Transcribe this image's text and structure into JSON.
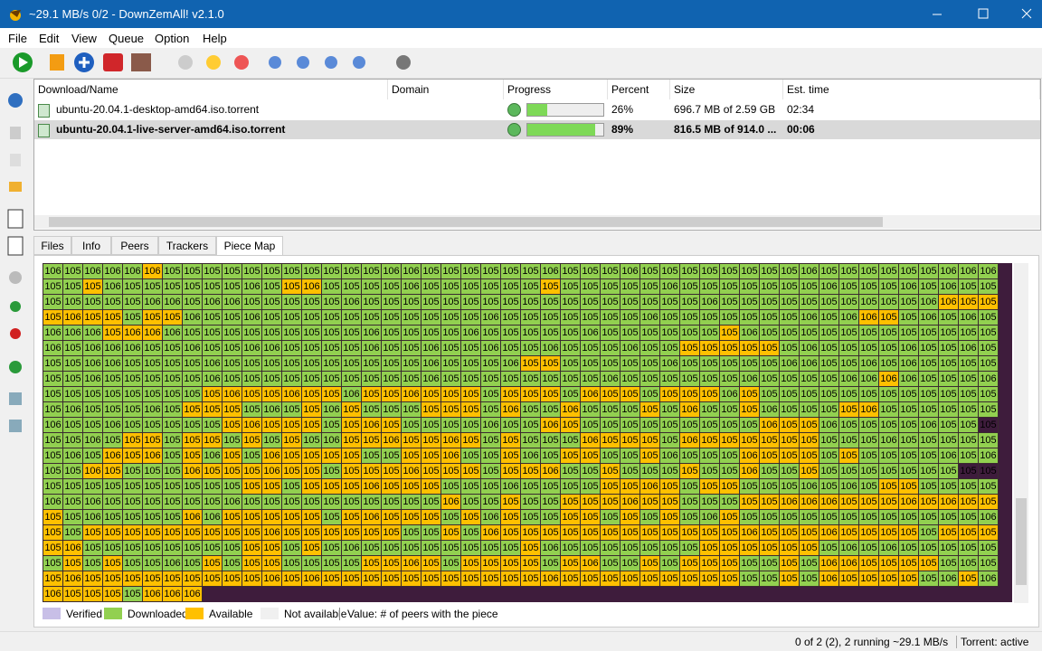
{
  "window": {
    "title": "~29.1 MB/s 0/2 - DownZemAll! v2.1.0"
  },
  "menu": [
    "File",
    "Edit",
    "View",
    "Queue",
    "Option",
    "Help"
  ],
  "table": {
    "columns": [
      "Download/Name",
      "Domain",
      "Progress",
      "Percent",
      "Size",
      "Est. time"
    ],
    "rows": [
      {
        "name": "ubuntu-20.04.1-desktop-amd64.iso.torrent",
        "progress": 26,
        "percent": "26%",
        "size": "696.7 MB of 2.59 GB",
        "time": "02:34",
        "selected": false
      },
      {
        "name": "ubuntu-20.04.1-live-server-amd64.iso.torrent",
        "progress": 89,
        "percent": "89%",
        "size": "816.5 MB of 914.0 ...",
        "time": "00:06",
        "selected": true
      }
    ]
  },
  "tabs": [
    "Files",
    "Info",
    "Peers",
    "Trackers",
    "Piece Map"
  ],
  "active_tab": 4,
  "piece_map": {
    "colors": {
      "d": "#92d050",
      "a": "#ffc000"
    },
    "states": [
      "dddddadddddddddddddddddddddddddddddddddddddddddd",
      "ddadddddddddaadddddddddddaddddddddddddddddddddddd",
      "dddddddddddddddddddddddddddddddddddddddddddddaaa",
      "aaaadaaddddddddddddddddddddddddddddddddddaaddddd",
      "dddaaaddddddddddddddddddddddddddddaddddddddddddd",
      "ddddddddddddddddddddddddddddddddaaaaaddddddddddd",
      "ddddddddddddddddddddddddaadddddddddddddddddddddd",
      "ddddddddddddddddddddddddddddddddddddddddddaddddd",
      "ddddddddaaaaaaadaaaaaadaaadaaadaaadaddddddddddddd",
      "dddddddaaadddadadddaaadaddadddadaddaddddaadddddd",
      "dddddddddaaaaadaaadddddddaadddddddddaaadddddddd",
      "ddddaadaadadaddaaaaaaadadddaaaadaaaaaaaddddddddd",
      "dddaaadadadaaaaaddaaaddaddaaddaddddaaaadaddddddda",
      "ddaadddaaaaaaadaaaaaaadaaaddadddaddaddaddddddd",
      "ddddddddddaadaaaaaaaddddddddaaaadaadddddddaadddd",
      "ddddddddddddddddddddaddaddaaaaaadddaaaaaaaaaaaaa",
      "addddddadaaaaadaaaaadadaddaadadaddaddddddddddddd",
      "adaaaaaaaaaaaaaaaaddadaaaaaaaaaaaaaaaaaaaaaadaaa",
      "aaddddddddaadaddddddddddaddddddddaaaaaaddddddddddd",
      "dadaddddadaaddddaaaadaaaadaaddadaaaddadaaaaaaddd",
      "aaaaaaaaaaaaaaaaaaaaaaaaaaaaaaaaaaaddadaaaaaddad",
      "aaaadaaa"
    ],
    "rows": [
      [
        106,
        105,
        106,
        106,
        106,
        106,
        105,
        105,
        105,
        105,
        105,
        105,
        105,
        105,
        105,
        105,
        105,
        106,
        106,
        105,
        105,
        105,
        105,
        105,
        105,
        106,
        105,
        105,
        105,
        106,
        105,
        105,
        105,
        105,
        105,
        105,
        105,
        105,
        106,
        105,
        105,
        105,
        105,
        105,
        105,
        106,
        106,
        106
      ],
      [
        105,
        105,
        105,
        106,
        105,
        105,
        105,
        105,
        105,
        105,
        106,
        105,
        105,
        106,
        105,
        105,
        105,
        105,
        106,
        105,
        105,
        105,
        105,
        105,
        105,
        105,
        105,
        105,
        105,
        105,
        105,
        106,
        105,
        105,
        105,
        105,
        105,
        105,
        105,
        106,
        105,
        105,
        105,
        106,
        105,
        106,
        105,
        105
      ],
      [
        105,
        105,
        105,
        105,
        105,
        106,
        106,
        105,
        106,
        106,
        105,
        105,
        105,
        105,
        105,
        106,
        105,
        105,
        105,
        105,
        105,
        105,
        105,
        105,
        105,
        105,
        105,
        105,
        105,
        105,
        105,
        105,
        105,
        106,
        105,
        105,
        105,
        105,
        105,
        105,
        105,
        105,
        105,
        105,
        106,
        106,
        105,
        105
      ],
      [
        105,
        106,
        105,
        105,
        105,
        105,
        105,
        106,
        105,
        105,
        106,
        105,
        105,
        105,
        105,
        105,
        105,
        105,
        105,
        105,
        105,
        105,
        106,
        105,
        105,
        105,
        105,
        105,
        105,
        105,
        106,
        105,
        105,
        105,
        105,
        105,
        105,
        105,
        106,
        105,
        106,
        106,
        105,
        105,
        106,
        105,
        106,
        105
      ],
      [
        106,
        106,
        106,
        105,
        106,
        106,
        106,
        105,
        105,
        105,
        105,
        105,
        105,
        105,
        105,
        105,
        106,
        105,
        105,
        105,
        105,
        106,
        105,
        105,
        105,
        105,
        105,
        106,
        105,
        105,
        105,
        105,
        105,
        105,
        105,
        106,
        105,
        105,
        105,
        105,
        105,
        105,
        105,
        105,
        105,
        105,
        105,
        105
      ],
      [
        106,
        105,
        106,
        106,
        106,
        105,
        105,
        106,
        105,
        105,
        106,
        106,
        105,
        105,
        105,
        105,
        106,
        105,
        105,
        106,
        105,
        105,
        106,
        105,
        105,
        106,
        105,
        105,
        105,
        106,
        105,
        105,
        105,
        105,
        105,
        105,
        105,
        105,
        106,
        105,
        105,
        105,
        105,
        106,
        105,
        105,
        106,
        105
      ],
      [
        105,
        105,
        106,
        106,
        105,
        105,
        105,
        105,
        106,
        105,
        105,
        105,
        105,
        105,
        105,
        105,
        105,
        105,
        105,
        106,
        105,
        105,
        105,
        106,
        105,
        105,
        105,
        105,
        105,
        105,
        105,
        106,
        105,
        105,
        105,
        105,
        105,
        106,
        106,
        105,
        105,
        106,
        105,
        106,
        105,
        105,
        105,
        105
      ],
      [
        105,
        105,
        106,
        105,
        105,
        105,
        105,
        105,
        106,
        105,
        105,
        105,
        105,
        105,
        105,
        105,
        105,
        105,
        105,
        106,
        105,
        105,
        105,
        105,
        105,
        105,
        105,
        105,
        106,
        105,
        105,
        105,
        105,
        105,
        105,
        106,
        105,
        105,
        105,
        105,
        106,
        106,
        106,
        106,
        105,
        105,
        105,
        106
      ],
      [
        105,
        105,
        105,
        105,
        105,
        105,
        105,
        105,
        105,
        106,
        105,
        105,
        106,
        105,
        105,
        106,
        105,
        105,
        106,
        105,
        105,
        105,
        105,
        105,
        105,
        105,
        105,
        106,
        105,
        105,
        105,
        105,
        105,
        105,
        106,
        105,
        105,
        105,
        105,
        105,
        105,
        105,
        105,
        105,
        105,
        105,
        105,
        105
      ],
      [
        105,
        106,
        105,
        105,
        105,
        106,
        105,
        105,
        105,
        105,
        105,
        106,
        105,
        105,
        106,
        105,
        105,
        105,
        105,
        105,
        105,
        105,
        105,
        106,
        105,
        105,
        106,
        105,
        105,
        105,
        105,
        105,
        106,
        105,
        105,
        105,
        106,
        105,
        105,
        105,
        105,
        106,
        105,
        105,
        105,
        105,
        105,
        105
      ],
      [
        106,
        105,
        105,
        106,
        105,
        105,
        105,
        105,
        105,
        105,
        106,
        105,
        105,
        105,
        105,
        105,
        106,
        105,
        105,
        105,
        105,
        105,
        106,
        105,
        105,
        106,
        105,
        105,
        105,
        105,
        105,
        105,
        105,
        105,
        105,
        105,
        106,
        105,
        105,
        106,
        105,
        105,
        105,
        105,
        106,
        105,
        105,
        105
      ],
      [
        105,
        105,
        106,
        105,
        105,
        105,
        105,
        105,
        105,
        105,
        105,
        105,
        105,
        105,
        106,
        105,
        105,
        106,
        105,
        105,
        106,
        105,
        105,
        105,
        105,
        105,
        105,
        106,
        105,
        105,
        105,
        105,
        106,
        105,
        105,
        105,
        105,
        105,
        105,
        105,
        105,
        105,
        106,
        105,
        105,
        105,
        105,
        105
      ],
      [
        105,
        106,
        105,
        106,
        105,
        106,
        105,
        105,
        106,
        105,
        105,
        106,
        105,
        105,
        105,
        105,
        105,
        105,
        105,
        105,
        106,
        105,
        105,
        105,
        106,
        105,
        105,
        105,
        105,
        105,
        105,
        106,
        105,
        105,
        105,
        106,
        105,
        105,
        105,
        105,
        105,
        105,
        105,
        105,
        105,
        106,
        105,
        106
      ],
      [
        105,
        105,
        106,
        105,
        105,
        105,
        105,
        106,
        105,
        105,
        105,
        106,
        105,
        105,
        105,
        105,
        105,
        105,
        106,
        105,
        105,
        105,
        105,
        105,
        105,
        106,
        105,
        105,
        105,
        105,
        105,
        105,
        105,
        105,
        105,
        106,
        105,
        105,
        105,
        105,
        105,
        105,
        105,
        105,
        105,
        105,
        105,
        105
      ],
      [
        105,
        105,
        105,
        105,
        105,
        105,
        105,
        105,
        105,
        105,
        105,
        105,
        105,
        105,
        105,
        105,
        106,
        105,
        105,
        105,
        105,
        105,
        105,
        106,
        105,
        105,
        105,
        105,
        105,
        105,
        106,
        105,
        105,
        105,
        105,
        105,
        105,
        105,
        106,
        105,
        106,
        105,
        105,
        105,
        105,
        105,
        105,
        105
      ],
      [
        106,
        105,
        106,
        105,
        105,
        105,
        105,
        105,
        105,
        106,
        105,
        105,
        105,
        105,
        105,
        105,
        105,
        105,
        105,
        105,
        106,
        105,
        105,
        105,
        105,
        105,
        105,
        105,
        105,
        106,
        105,
        105,
        105,
        105,
        105,
        105,
        105,
        106,
        106,
        106,
        105,
        105,
        105,
        106,
        105,
        106,
        105,
        105
      ],
      [
        105,
        105,
        106,
        105,
        105,
        105,
        105,
        106,
        106,
        105,
        105,
        105,
        105,
        105,
        105,
        105,
        106,
        105,
        105,
        105,
        105,
        105,
        106,
        105,
        105,
        105,
        105,
        105,
        105,
        105,
        105,
        105,
        105,
        106,
        105,
        105,
        105,
        105,
        105,
        105,
        105,
        105,
        105,
        105,
        105,
        105,
        105,
        106
      ],
      [
        105,
        105,
        105,
        105,
        105,
        105,
        105,
        105,
        105,
        105,
        105,
        106,
        105,
        105,
        105,
        105,
        105,
        105,
        105,
        105,
        105,
        105,
        106,
        105,
        105,
        105,
        105,
        105,
        105,
        105,
        105,
        105,
        105,
        105,
        105,
        106,
        105,
        105,
        105,
        106,
        105,
        105,
        105,
        105,
        105,
        105,
        105,
        105
      ],
      [
        105,
        106,
        105,
        105,
        105,
        105,
        105,
        105,
        105,
        105,
        105,
        105,
        105,
        105,
        105,
        106,
        105,
        105,
        105,
        105,
        105,
        105,
        105,
        105,
        105,
        106,
        105,
        105,
        105,
        105,
        105,
        105,
        105,
        105,
        105,
        105,
        105,
        105,
        105,
        105,
        106,
        105,
        106,
        105,
        105,
        105,
        105,
        105
      ],
      [
        105,
        105,
        105,
        105,
        105,
        105,
        106,
        105,
        105,
        105,
        105,
        105,
        105,
        105,
        105,
        105,
        105,
        105,
        106,
        105,
        105,
        105,
        105,
        105,
        105,
        105,
        105,
        106,
        105,
        105,
        105,
        105,
        105,
        105,
        105,
        105,
        105,
        105,
        105,
        106,
        106,
        105,
        105,
        105,
        105,
        105,
        105,
        105
      ],
      [
        105,
        106,
        105,
        105,
        105,
        105,
        105,
        105,
        105,
        105,
        105,
        106,
        105,
        106,
        105,
        105,
        105,
        105,
        105,
        105,
        105,
        105,
        105,
        105,
        105,
        106,
        105,
        105,
        105,
        105,
        105,
        105,
        105,
        105,
        105,
        105,
        105,
        105,
        105,
        106,
        105,
        105,
        105,
        105,
        105,
        106,
        105,
        106
      ],
      [
        106,
        105,
        105,
        105,
        105,
        106,
        106,
        106
      ]
    ]
  },
  "legend": [
    {
      "label": "Verified",
      "color": "#c8bfe7"
    },
    {
      "label": "Downloaded",
      "color": "#92d050"
    },
    {
      "label": "Available",
      "color": "#ffc000"
    },
    {
      "label": "Not available",
      "color": "#f0f0f0"
    }
  ],
  "legend_note": "Value: # of peers with the piece",
  "status": {
    "text": "0 of 2 (2), 2 running  ~29.1 MB/s",
    "mode": "Torrent: active"
  }
}
